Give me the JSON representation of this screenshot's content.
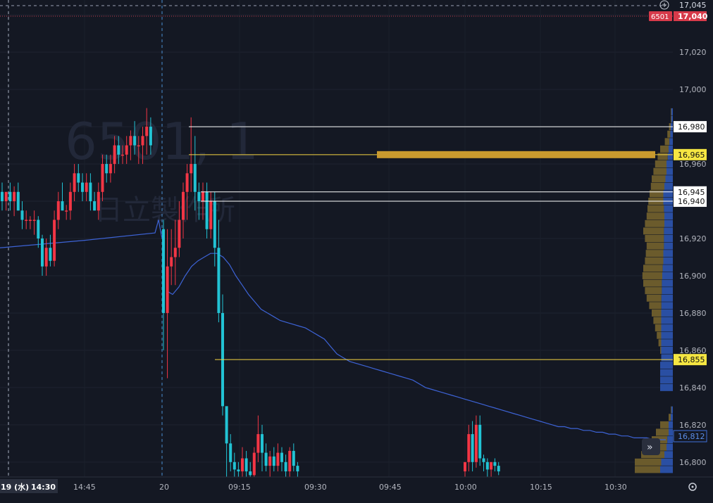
{
  "watermark": {
    "code": "6501, 1",
    "name": "日立製作所"
  },
  "header": {
    "top_price": "17,045",
    "symbol": "6501",
    "last_price": "17,040"
  },
  "price_axis": {
    "ticks": [
      "17,020",
      "17,000",
      "16,960",
      "16,920",
      "16,900",
      "16,880",
      "16,860",
      "16,840",
      "16,820",
      "16,800"
    ],
    "ylim": [
      16792,
      17048
    ],
    "vwap_label": "16,812"
  },
  "time_axis": {
    "date_label": "19 (水)",
    "first_time_label": "14:30",
    "labels": [
      "14:45",
      "20",
      "09:15",
      "09:30",
      "09:45",
      "10:00",
      "10:15",
      "10:30"
    ]
  },
  "levels": [
    {
      "price": "16,980",
      "style": "white"
    },
    {
      "price": "16,965",
      "style": "yellow"
    },
    {
      "price": "16,945",
      "style": "white"
    },
    {
      "price": "16,940",
      "style": "white"
    },
    {
      "price": "16,855",
      "style": "yellow"
    }
  ],
  "chart_data": {
    "type": "candlestick",
    "ylim": [
      16792,
      17048
    ],
    "candles_day1": [
      [
        16945,
        16950,
        16935,
        16940
      ],
      [
        16940,
        16945,
        16935,
        16945
      ],
      [
        16945,
        16950,
        16935,
        16940
      ],
      [
        16940,
        16948,
        16932,
        16945
      ],
      [
        16945,
        16950,
        16935,
        16935
      ],
      [
        16935,
        16940,
        16925,
        16930
      ],
      [
        16930,
        16935,
        16925,
        16930
      ],
      [
        16930,
        16932,
        16925,
        16930
      ],
      [
        16930,
        16935,
        16922,
        16930
      ],
      [
        16930,
        16932,
        16915,
        16920
      ],
      [
        16920,
        16922,
        16900,
        16905
      ],
      [
        16905,
        16920,
        16900,
        16915
      ],
      [
        16915,
        16922,
        16905,
        16908
      ],
      [
        16908,
        16935,
        16905,
        16930
      ],
      [
        16930,
        16945,
        16925,
        16940
      ],
      [
        16940,
        16950,
        16935,
        16935
      ],
      [
        16935,
        16938,
        16930,
        16935
      ],
      [
        16935,
        16950,
        16930,
        16945
      ],
      [
        16945,
        16960,
        16940,
        16955
      ],
      [
        16955,
        16960,
        16945,
        16950
      ],
      [
        16950,
        16955,
        16940,
        16945
      ],
      [
        16945,
        16955,
        16940,
        16950
      ],
      [
        16950,
        16955,
        16935,
        16940
      ],
      [
        16940,
        16945,
        16935,
        16935
      ],
      [
        16935,
        16950,
        16930,
        16945
      ],
      [
        16945,
        16965,
        16940,
        16960
      ],
      [
        16960,
        16965,
        16950,
        16955
      ],
      [
        16955,
        16965,
        16950,
        16960
      ],
      [
        16960,
        16975,
        16955,
        16970
      ],
      [
        16970,
        16975,
        16960,
        16965
      ],
      [
        16965,
        16970,
        16960,
        16965
      ],
      [
        16965,
        16975,
        16960,
        16970
      ],
      [
        16970,
        16978,
        16962,
        16975
      ],
      [
        16975,
        16983,
        16965,
        16970
      ],
      [
        16970,
        16975,
        16960,
        16970
      ],
      [
        16970,
        16980,
        16960,
        16975
      ],
      [
        16975,
        16990,
        16965,
        16980
      ],
      [
        16980,
        16985,
        16965,
        16970
      ]
    ],
    "candles_day2": [
      [
        16925,
        16930,
        16860,
        16880
      ],
      [
        16880,
        16925,
        16845,
        16905
      ],
      [
        16905,
        16925,
        16895,
        16910
      ],
      [
        16910,
        16930,
        16895,
        16915
      ],
      [
        16915,
        16940,
        16910,
        16930
      ],
      [
        16930,
        16950,
        16920,
        16945
      ],
      [
        16945,
        16960,
        16930,
        16955
      ],
      [
        16955,
        16985,
        16945,
        16960
      ],
      [
        16960,
        16975,
        16935,
        16945
      ],
      [
        16945,
        16950,
        16930,
        16940
      ],
      [
        16940,
        16950,
        16930,
        16945
      ],
      [
        16945,
        16950,
        16920,
        16925
      ],
      [
        16925,
        16945,
        16920,
        16940
      ],
      [
        16940,
        16945,
        16905,
        16915
      ],
      [
        16915,
        16930,
        16875,
        16880
      ],
      [
        16880,
        16890,
        16825,
        16830
      ],
      [
        16830,
        16820,
        16790,
        16810
      ],
      [
        16810,
        16815,
        16795,
        16800
      ],
      [
        16800,
        16805,
        16792,
        16796
      ],
      [
        16796,
        16800,
        16792,
        16795
      ],
      [
        16795,
        16808,
        16792,
        16802
      ],
      [
        16802,
        16806,
        16792,
        16795
      ],
      [
        16795,
        16800,
        16792,
        16793
      ],
      [
        16793,
        16808,
        16792,
        16805
      ],
      [
        16805,
        16825,
        16800,
        16815
      ],
      [
        16815,
        16820,
        16795,
        16805
      ],
      [
        16805,
        16810,
        16795,
        16798
      ],
      [
        16798,
        16806,
        16792,
        16803
      ],
      [
        16803,
        16808,
        16795,
        16798
      ],
      [
        16798,
        16810,
        16795,
        16805
      ],
      [
        16805,
        16808,
        16795,
        16800
      ],
      [
        16800,
        16804,
        16792,
        16795
      ],
      [
        16795,
        16808,
        16792,
        16806
      ],
      [
        16806,
        16810,
        16795,
        16798
      ],
      [
        16798,
        16800,
        16792,
        16795
      ]
    ],
    "candles_day2b": [
      [
        16795,
        16800,
        16792,
        16800
      ],
      [
        16800,
        16820,
        16795,
        16815
      ],
      [
        16815,
        16822,
        16795,
        16800
      ],
      [
        16800,
        16825,
        16797,
        16820
      ],
      [
        16820,
        16825,
        16798,
        16802
      ],
      [
        16802,
        16804,
        16795,
        16800
      ],
      [
        16800,
        16802,
        16792,
        16796
      ],
      [
        16796,
        16800,
        16792,
        16800
      ],
      [
        16800,
        16802,
        16795,
        16798
      ],
      [
        16798,
        16800,
        16793,
        16795
      ]
    ],
    "vwap_day1": [
      [
        16915,
        16916
      ],
      [
        16920,
        16920
      ],
      [
        16923,
        16923
      ]
    ],
    "vwap_day2": [
      16892,
      16890,
      16894,
      16900,
      16905,
      16908,
      16910,
      16912,
      16912,
      16910,
      16906,
      16900,
      16895,
      16890,
      16886,
      16882,
      16880,
      16878,
      16876,
      16875,
      16874,
      16873,
      16872,
      16870,
      16868,
      16866,
      16862,
      16858,
      16856,
      16854,
      16853,
      16852,
      16851,
      16850,
      16849,
      16848,
      16847,
      16846,
      16845,
      16844,
      16842,
      16840,
      16839,
      16838,
      16837,
      16836,
      16835,
      16834,
      16833,
      16832,
      16831,
      16830,
      16829,
      16828,
      16827,
      16826,
      16825,
      16824,
      16823,
      16822,
      16821,
      16820,
      16819,
      16819,
      16818,
      16818,
      16817,
      16817,
      16816,
      16816,
      16815,
      16815,
      16814,
      16814,
      16813,
      16813,
      16813,
      16812,
      16812,
      16812
    ],
    "volume_profile": [
      [
        16988,
        0.05,
        0.07
      ],
      [
        16984,
        0.05,
        0.07
      ],
      [
        16980,
        0.09,
        0.1
      ],
      [
        16976,
        0.13,
        0.12
      ],
      [
        16972,
        0.19,
        0.16
      ],
      [
        16968,
        0.3,
        0.2
      ],
      [
        16964,
        0.36,
        0.24
      ],
      [
        16960,
        0.42,
        0.3
      ],
      [
        16956,
        0.46,
        0.3
      ],
      [
        16952,
        0.5,
        0.35
      ],
      [
        16948,
        0.52,
        0.4
      ],
      [
        16944,
        0.55,
        0.45
      ],
      [
        16940,
        0.58,
        0.45
      ],
      [
        16936,
        0.6,
        0.42
      ],
      [
        16932,
        0.62,
        0.4
      ],
      [
        16928,
        0.66,
        0.4
      ],
      [
        16924,
        0.7,
        0.42
      ],
      [
        16920,
        0.66,
        0.42
      ],
      [
        16916,
        0.62,
        0.42
      ],
      [
        16912,
        0.64,
        0.45
      ],
      [
        16908,
        0.66,
        0.45
      ],
      [
        16904,
        0.7,
        0.48
      ],
      [
        16900,
        0.72,
        0.5
      ],
      [
        16896,
        0.7,
        0.52
      ],
      [
        16892,
        0.66,
        0.52
      ],
      [
        16888,
        0.62,
        0.54
      ],
      [
        16884,
        0.56,
        0.54
      ],
      [
        16880,
        0.5,
        0.55
      ],
      [
        16876,
        0.46,
        0.55
      ],
      [
        16872,
        0.42,
        0.55
      ],
      [
        16868,
        0.38,
        0.55
      ],
      [
        16864,
        0.34,
        0.55
      ],
      [
        16860,
        0.3,
        0.55
      ],
      [
        16856,
        0.24,
        0.55
      ],
      [
        16852,
        0.18,
        0.6
      ],
      [
        16848,
        0.14,
        0.6
      ],
      [
        16844,
        0.1,
        0.6
      ],
      [
        16840,
        0.06,
        0.6
      ],
      [
        16828,
        0.05,
        0.07
      ],
      [
        16824,
        0.1,
        0.1
      ],
      [
        16820,
        0.3,
        0.2
      ],
      [
        16816,
        0.4,
        0.2
      ],
      [
        16812,
        0.5,
        0.26
      ],
      [
        16808,
        0.55,
        0.3
      ],
      [
        16804,
        0.75,
        0.4
      ],
      [
        16800,
        0.9,
        0.55
      ],
      [
        16796,
        0.9,
        0.6
      ]
    ]
  }
}
